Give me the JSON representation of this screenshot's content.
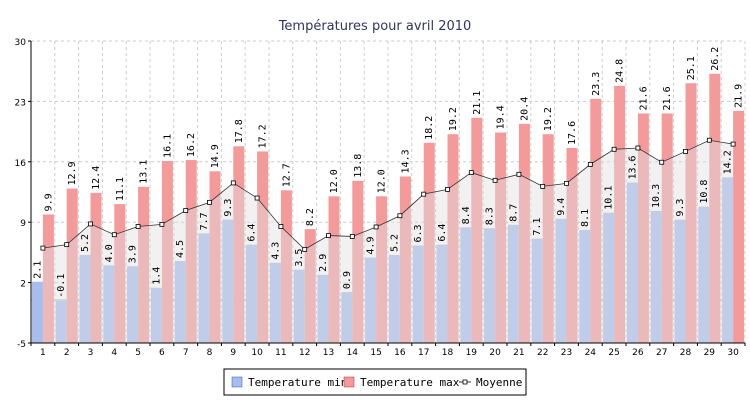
{
  "chart_data": {
    "type": "bar",
    "title": "Températures pour avril 2010",
    "xlabel": "",
    "ylabel": "",
    "ylim": [
      -5,
      30
    ],
    "yticks": [
      -5,
      2,
      9,
      16,
      23,
      30
    ],
    "grid": true,
    "legend_position": "bottom",
    "categories": [
      "1",
      "2",
      "3",
      "4",
      "5",
      "6",
      "7",
      "8",
      "9",
      "10",
      "11",
      "12",
      "13",
      "14",
      "15",
      "16",
      "17",
      "18",
      "19",
      "20",
      "21",
      "22",
      "23",
      "24",
      "25",
      "26",
      "27",
      "28",
      "29",
      "30"
    ],
    "series": [
      {
        "name": "Temperature min",
        "type": "bar",
        "color": "#a7bdee",
        "values": [
          2.1,
          -0.1,
          5.2,
          4.0,
          3.9,
          1.4,
          4.5,
          7.7,
          9.3,
          6.4,
          4.3,
          3.5,
          2.9,
          0.9,
          4.9,
          5.2,
          6.3,
          6.4,
          8.4,
          8.3,
          8.7,
          7.1,
          9.4,
          8.1,
          10.1,
          13.6,
          10.3,
          9.3,
          10.8,
          14.2
        ]
      },
      {
        "name": "Temperature max",
        "type": "bar",
        "color": "#f49a9a",
        "values": [
          9.9,
          12.9,
          12.4,
          11.1,
          13.1,
          16.1,
          16.2,
          14.9,
          17.8,
          17.2,
          12.7,
          8.2,
          12.0,
          13.8,
          12.0,
          14.3,
          18.2,
          19.2,
          21.1,
          19.4,
          20.4,
          19.2,
          17.6,
          23.3,
          24.8,
          21.6,
          21.6,
          25.1,
          26.2,
          21.9
        ]
      },
      {
        "name": "Moyenne",
        "type": "line",
        "color": "#333333",
        "values": [
          6.0,
          6.4,
          8.8,
          7.55,
          8.5,
          8.75,
          10.35,
          11.3,
          13.55,
          11.8,
          8.5,
          5.85,
          7.45,
          7.35,
          8.45,
          9.75,
          12.25,
          12.8,
          14.75,
          13.85,
          14.55,
          13.15,
          13.5,
          15.7,
          17.45,
          17.6,
          15.95,
          17.2,
          18.5,
          18.05
        ]
      }
    ]
  }
}
